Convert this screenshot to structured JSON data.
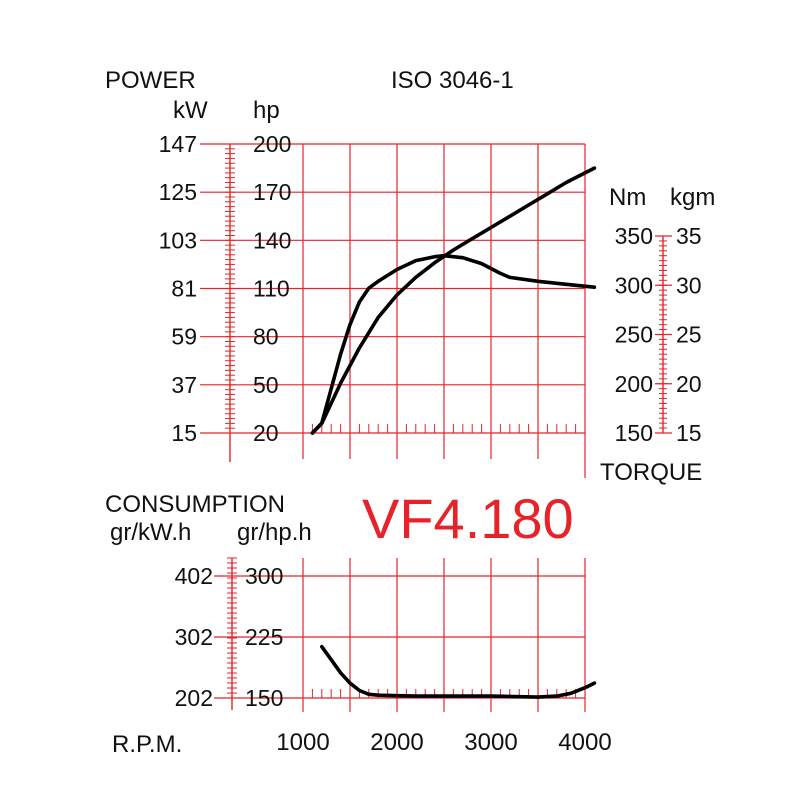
{
  "colors": {
    "grid": "#e8222a",
    "curve": "#000000",
    "model": "#e8222a",
    "text": "#111111"
  },
  "chart_data": {
    "type": "line",
    "standard": "ISO 3046-1",
    "model": "VF4.180",
    "x_axis": {
      "label": "R.P.M.",
      "range": [
        1000,
        4000
      ],
      "ticks": [
        "1000",
        "2000",
        "3000",
        "4000"
      ]
    },
    "power_axis": {
      "title": "POWER",
      "units": {
        "kw": "kW",
        "hp": "hp"
      },
      "hp_range": [
        20,
        200
      ],
      "kw_ticks": [
        "147",
        "125",
        "103",
        "81",
        "59",
        "37",
        "15"
      ],
      "hp_ticks": [
        "200",
        "170",
        "140",
        "110",
        "80",
        "50",
        "20"
      ]
    },
    "torque_axis": {
      "title": "TORQUE",
      "units": {
        "nm": "Nm",
        "kgm": "kgm"
      },
      "nm_range": [
        150,
        350
      ],
      "nm_ticks": [
        "350",
        "300",
        "250",
        "200",
        "150"
      ],
      "kgm_ticks": [
        "35",
        "30",
        "25",
        "20",
        "15"
      ]
    },
    "consumption_axis": {
      "title": "CONSUMPTION",
      "units": {
        "gkwh": "gr/kW.h",
        "ghph": "gr/hp.h"
      },
      "ghph_range": [
        150,
        300
      ],
      "gkwh_ticks": [
        "402",
        "302",
        "202"
      ],
      "ghph_ticks": [
        "300",
        "225",
        "150"
      ]
    },
    "series": [
      {
        "id": "power",
        "axis": "hp",
        "points": [
          [
            1100,
            20
          ],
          [
            1200,
            26
          ],
          [
            1400,
            51
          ],
          [
            1600,
            73
          ],
          [
            1800,
            92
          ],
          [
            2000,
            106
          ],
          [
            2200,
            117
          ],
          [
            2400,
            126
          ],
          [
            2600,
            134
          ],
          [
            2800,
            141
          ],
          [
            3000,
            148
          ],
          [
            3200,
            155
          ],
          [
            3400,
            162
          ],
          [
            3600,
            169
          ],
          [
            3800,
            176
          ],
          [
            4000,
            182
          ],
          [
            4100,
            185
          ]
        ]
      },
      {
        "id": "torque",
        "axis": "nm",
        "points": [
          [
            1100,
            150
          ],
          [
            1200,
            160
          ],
          [
            1300,
            195
          ],
          [
            1400,
            230
          ],
          [
            1500,
            260
          ],
          [
            1600,
            283
          ],
          [
            1700,
            297
          ],
          [
            1800,
            304
          ],
          [
            2000,
            316
          ],
          [
            2200,
            325
          ],
          [
            2400,
            329
          ],
          [
            2500,
            330
          ],
          [
            2700,
            328
          ],
          [
            2900,
            322
          ],
          [
            3100,
            312
          ],
          [
            3200,
            308
          ],
          [
            3500,
            304
          ],
          [
            3800,
            301
          ],
          [
            4100,
            298
          ]
        ]
      },
      {
        "id": "consumption",
        "axis": "ghph",
        "points": [
          [
            1200,
            205
          ],
          [
            1300,
            191
          ],
          [
            1400,
            177
          ],
          [
            1500,
            166
          ],
          [
            1600,
            158
          ],
          [
            1700,
            154
          ],
          [
            1800,
            153
          ],
          [
            2200,
            152
          ],
          [
            3000,
            152
          ],
          [
            3500,
            151
          ],
          [
            3700,
            152
          ],
          [
            3850,
            155
          ],
          [
            4000,
            161
          ],
          [
            4100,
            166
          ]
        ]
      }
    ]
  }
}
